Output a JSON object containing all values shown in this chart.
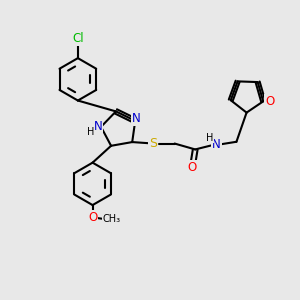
{
  "background_color": "#e8e8e8",
  "atom_colors": {
    "C": "#000000",
    "N": "#0000cc",
    "O": "#ff0000",
    "S": "#ccaa00",
    "Cl": "#00bb00",
    "H": "#000000"
  },
  "bond_color": "#000000",
  "bond_width": 1.5,
  "font_size": 8.5,
  "fig_size": [
    3.0,
    3.0
  ],
  "dpi": 100
}
